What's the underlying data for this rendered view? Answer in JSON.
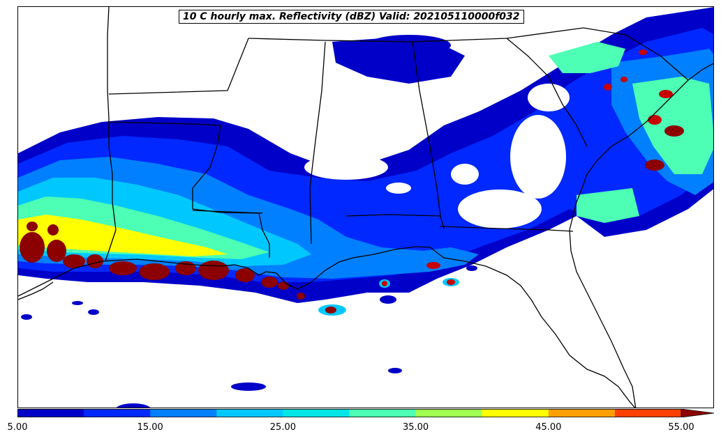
{
  "title": "10 C hourly max. Reflectivity (dBZ) Valid: 202105110000f032",
  "colorbar": {
    "levels": [
      5,
      10,
      15,
      20,
      25,
      30,
      35,
      40,
      45,
      50,
      55
    ],
    "colors": [
      "#0000c8",
      "#0028ff",
      "#0080ff",
      "#00c8ff",
      "#00e6e6",
      "#4cffb4",
      "#a0ff50",
      "#ffff00",
      "#ffa000",
      "#ff4000",
      "#c80000",
      "#8c0000"
    ],
    "extend": "max",
    "tick_labels": [
      "5.00",
      "15.00",
      "25.00",
      "35.00",
      "45.00",
      "55.00"
    ]
  },
  "map": {
    "region": "Southeastern United States and Gulf of Mexico",
    "boundaries": [
      "coastlines",
      "state borders"
    ]
  }
}
